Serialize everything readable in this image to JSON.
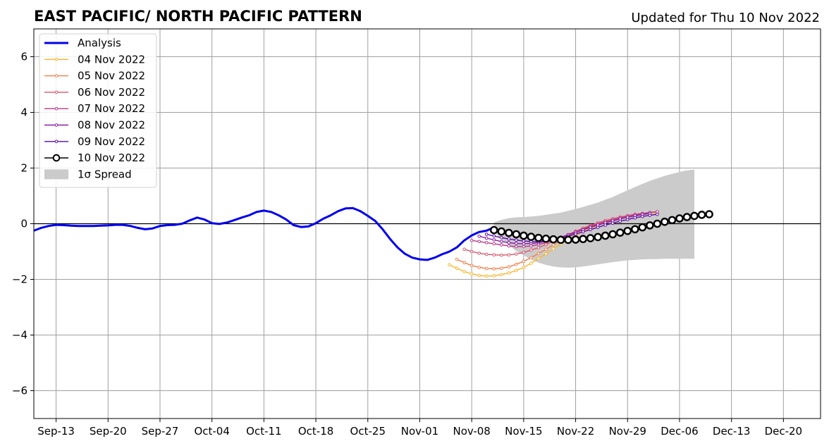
{
  "chart_data": {
    "type": "line",
    "title": "EAST PACIFIC/ NORTH PACIFIC PATTERN",
    "subtitle": "Updated for Thu 10 Nov 2022",
    "xlabel": "",
    "ylabel": "",
    "x_axis": {
      "type": "date",
      "range": [
        "2022-09-10",
        "2022-12-25"
      ],
      "ticks": [
        "2022-09-13",
        "2022-09-20",
        "2022-09-27",
        "2022-10-04",
        "2022-10-11",
        "2022-10-18",
        "2022-10-25",
        "2022-11-01",
        "2022-11-08",
        "2022-11-15",
        "2022-11-22",
        "2022-11-29",
        "2022-12-06",
        "2022-12-13",
        "2022-12-20"
      ],
      "tick_labels": [
        "Sep-13",
        "Sep-20",
        "Sep-27",
        "Oct-04",
        "Oct-11",
        "Oct-18",
        "Oct-25",
        "Nov-01",
        "Nov-08",
        "Nov-15",
        "Nov-22",
        "Nov-29",
        "Dec-06",
        "Dec-13",
        "Dec-20"
      ]
    },
    "ylim": [
      -7,
      7
    ],
    "yticks": [
      -6,
      -4,
      -2,
      0,
      2,
      4,
      6
    ],
    "ytick_labels": [
      "−6",
      "−4",
      "−2",
      "0",
      "2",
      "4",
      "6"
    ],
    "grid": true,
    "zero_line": true,
    "legend_position": "top-left",
    "analysis": {
      "name": "Analysis",
      "color": "#0000ee",
      "start": "2022-09-10",
      "values": [
        -0.25,
        -0.15,
        -0.08,
        -0.04,
        -0.05,
        -0.07,
        -0.08,
        -0.08,
        -0.08,
        -0.07,
        -0.06,
        -0.04,
        -0.04,
        -0.08,
        -0.15,
        -0.2,
        -0.17,
        -0.08,
        -0.05,
        -0.04,
        0.0,
        0.12,
        0.22,
        0.15,
        0.02,
        -0.01,
        0.04,
        0.13,
        0.22,
        0.3,
        0.42,
        0.47,
        0.42,
        0.3,
        0.15,
        -0.05,
        -0.12,
        -0.1,
        0.02,
        0.18,
        0.3,
        0.45,
        0.55,
        0.56,
        0.45,
        0.28,
        0.1,
        -0.2,
        -0.55,
        -0.85,
        -1.08,
        -1.22,
        -1.28,
        -1.3,
        -1.22,
        -1.1,
        -1.0,
        -0.85,
        -0.6,
        -0.42,
        -0.3,
        -0.25,
        -0.13
      ]
    },
    "spread": {
      "name": "1σ Spread",
      "color": "#cbcbcb",
      "start": "2022-11-11",
      "upper": [
        0.05,
        0.14,
        0.2,
        0.23,
        0.24,
        0.26,
        0.28,
        0.32,
        0.36,
        0.4,
        0.46,
        0.53,
        0.6,
        0.68,
        0.76,
        0.86,
        0.96,
        1.08,
        1.2,
        1.32,
        1.43,
        1.54,
        1.63,
        1.72,
        1.79,
        1.86,
        1.92,
        1.95
      ],
      "lower": [
        -0.3,
        -0.55,
        -0.78,
        -0.98,
        -1.14,
        -1.28,
        -1.4,
        -1.48,
        -1.54,
        -1.57,
        -1.58,
        -1.57,
        -1.54,
        -1.5,
        -1.46,
        -1.42,
        -1.38,
        -1.35,
        -1.32,
        -1.3,
        -1.28,
        -1.27,
        -1.27,
        -1.26,
        -1.26,
        -1.26,
        -1.26,
        -1.26
      ]
    },
    "series": [
      {
        "name": "04 Nov 2022",
        "color": "#fbb42d",
        "start": "2022-11-05",
        "values": [
          -1.48,
          -1.6,
          -1.72,
          -1.8,
          -1.86,
          -1.88,
          -1.87,
          -1.83,
          -1.77,
          -1.68,
          -1.57,
          -1.42,
          -1.25,
          -1.08,
          -0.9,
          -0.73,
          -0.57,
          -0.42,
          -0.28,
          -0.16,
          -0.05,
          0.05,
          0.13,
          0.2,
          0.26,
          0.31,
          0.35,
          0.38,
          0.4
        ]
      },
      {
        "name": "05 Nov 2022",
        "color": "#f07f4a",
        "start": "2022-11-06",
        "values": [
          -1.28,
          -1.4,
          -1.5,
          -1.57,
          -1.61,
          -1.62,
          -1.6,
          -1.55,
          -1.46,
          -1.35,
          -1.22,
          -1.07,
          -0.92,
          -0.76,
          -0.61,
          -0.46,
          -0.32,
          -0.2,
          -0.08,
          0.02,
          0.1,
          0.17,
          0.23,
          0.28,
          0.32,
          0.36,
          0.4
        ]
      },
      {
        "name": "06 Nov 2022",
        "color": "#d9556a",
        "start": "2022-11-07",
        "values": [
          -0.92,
          -1.0,
          -1.06,
          -1.1,
          -1.12,
          -1.13,
          -1.12,
          -1.09,
          -1.03,
          -0.95,
          -0.86,
          -0.75,
          -0.63,
          -0.51,
          -0.39,
          -0.27,
          -0.16,
          -0.06,
          0.03,
          0.11,
          0.18,
          0.24,
          0.29,
          0.34,
          0.37,
          0.4
        ]
      },
      {
        "name": "07 Nov 2022",
        "color": "#b8378b",
        "start": "2022-11-08",
        "values": [
          -0.6,
          -0.64,
          -0.68,
          -0.72,
          -0.76,
          -0.8,
          -0.82,
          -0.82,
          -0.8,
          -0.75,
          -0.68,
          -0.6,
          -0.5,
          -0.4,
          -0.3,
          -0.2,
          -0.1,
          -0.01,
          0.07,
          0.14,
          0.21,
          0.27,
          0.32,
          0.36,
          0.4,
          0.43
        ]
      },
      {
        "name": "08 Nov 2022",
        "color": "#8a1ca4",
        "start": "2022-11-09",
        "values": [
          -0.45,
          -0.52,
          -0.58,
          -0.64,
          -0.68,
          -0.71,
          -0.72,
          -0.71,
          -0.68,
          -0.63,
          -0.56,
          -0.48,
          -0.4,
          -0.31,
          -0.22,
          -0.13,
          -0.05,
          0.03,
          0.1,
          0.17,
          0.23,
          0.28,
          0.33,
          0.37
        ]
      },
      {
        "name": "09 Nov 2022",
        "color": "#5a0aa3",
        "start": "2022-11-10",
        "values": [
          -0.38,
          -0.44,
          -0.5,
          -0.55,
          -0.59,
          -0.62,
          -0.64,
          -0.64,
          -0.62,
          -0.58,
          -0.52,
          -0.45,
          -0.37,
          -0.29,
          -0.21,
          -0.13,
          -0.05,
          0.02,
          0.09,
          0.15,
          0.21,
          0.26,
          0.3,
          0.34
        ]
      },
      {
        "name": "10 Nov 2022",
        "color": "#000000",
        "start": "2022-11-11",
        "marker": "open-circle",
        "values": [
          -0.23,
          -0.28,
          -0.33,
          -0.38,
          -0.43,
          -0.47,
          -0.51,
          -0.54,
          -0.56,
          -0.58,
          -0.58,
          -0.57,
          -0.55,
          -0.52,
          -0.48,
          -0.43,
          -0.38,
          -0.32,
          -0.26,
          -0.2,
          -0.13,
          -0.06,
          0.0,
          0.07,
          0.13,
          0.19,
          0.24,
          0.28,
          0.32,
          0.34
        ]
      }
    ]
  }
}
